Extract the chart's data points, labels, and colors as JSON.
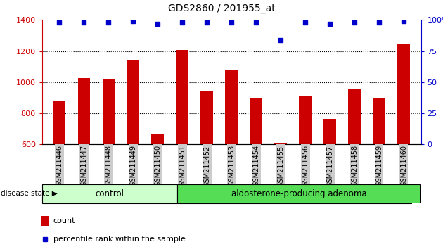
{
  "title": "GDS2860 / 201955_at",
  "samples": [
    "GSM211446",
    "GSM211447",
    "GSM211448",
    "GSM211449",
    "GSM211450",
    "GSM211451",
    "GSM211452",
    "GSM211453",
    "GSM211454",
    "GSM211455",
    "GSM211456",
    "GSM211457",
    "GSM211458",
    "GSM211459",
    "GSM211460"
  ],
  "counts": [
    880,
    1025,
    1020,
    1145,
    663,
    1205,
    945,
    1080,
    900,
    608,
    910,
    763,
    960,
    900,
    1250
  ],
  "percentile_approx": [
    98,
    98,
    98,
    99,
    97,
    98,
    98,
    98,
    98,
    84,
    98,
    97,
    98,
    98,
    99
  ],
  "control_count": 5,
  "adenoma_count": 10,
  "ylim_left": [
    600,
    1400
  ],
  "ylim_right": [
    0,
    100
  ],
  "yticks_left": [
    600,
    800,
    1000,
    1200,
    1400
  ],
  "yticks_right": [
    0,
    25,
    50,
    75,
    100
  ],
  "bar_color": "#cc0000",
  "dot_color": "#0000cc",
  "control_bg": "#ccffcc",
  "adenoma_bg": "#55dd55",
  "label_bg": "#cccccc",
  "legend_count_label": "count",
  "legend_pct_label": "percentile rank within the sample",
  "disease_state_label": "disease state",
  "control_label": "control",
  "adenoma_label": "aldosterone-producing adenoma"
}
